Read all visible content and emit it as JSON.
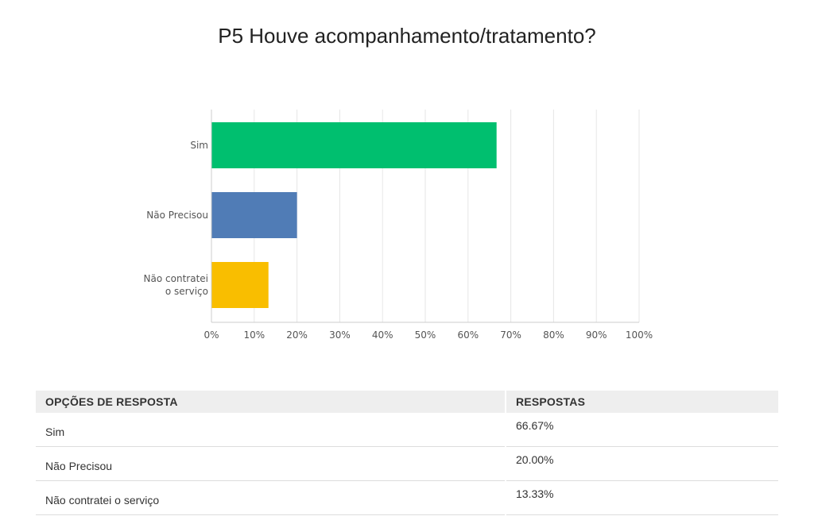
{
  "colors": {
    "grid": "#e6e6e6",
    "axis": "#cccccc",
    "tick_text": "#555555"
  },
  "chart_data": {
    "type": "bar",
    "orientation": "horizontal",
    "title": "P5 Houve acompanhamento/tratamento?",
    "categories": [
      "Sim",
      "Não Precisou",
      "Não contratei o serviço"
    ],
    "category_lines": [
      [
        "Sim"
      ],
      [
        "Não Precisou"
      ],
      [
        "Não contratei",
        "o serviço"
      ]
    ],
    "values": [
      66.67,
      20.0,
      13.33
    ],
    "colors": [
      "#00bf6f",
      "#507cb6",
      "#f9be00"
    ],
    "xlim": [
      0,
      100
    ],
    "xticks": [
      0,
      10,
      20,
      30,
      40,
      50,
      60,
      70,
      80,
      90,
      100
    ],
    "xtick_labels": [
      "0%",
      "10%",
      "20%",
      "30%",
      "40%",
      "50%",
      "60%",
      "70%",
      "80%",
      "90%",
      "100%"
    ],
    "xlabel": "",
    "ylabel": "",
    "grid": true,
    "legend": "none"
  },
  "table": {
    "headers": [
      "OPÇÕES DE RESPOSTA",
      "RESPOSTAS"
    ],
    "rows": [
      {
        "option": "Sim",
        "value": "66.67%"
      },
      {
        "option": "Não Precisou",
        "value": "20.00%"
      },
      {
        "option": "Não contratei o serviço",
        "value": "13.33%"
      }
    ]
  }
}
